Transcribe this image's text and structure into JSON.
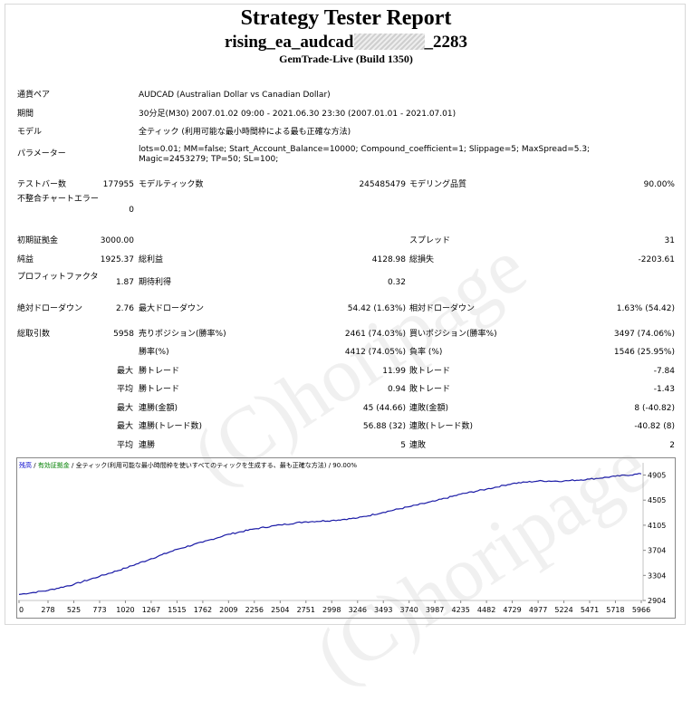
{
  "header": {
    "title": "Strategy Tester Report",
    "ea_prefix": "rising_ea_audcad",
    "ea_suffix": "_2283",
    "server": "GemTrade-Live (Build 1350)"
  },
  "info": {
    "currency_pair_label": "通貨ペア",
    "currency_pair": "AUDCAD (Australian Dollar vs Canadian Dollar)",
    "period_label": "期間",
    "period": "30分足(M30) 2007.01.02 09:00 - 2021.06.30 23:30 (2007.01.01 - 2021.07.01)",
    "model_label": "モデル",
    "model": "全ティック (利用可能な最小時間枠による最も正確な方法)",
    "params_label": "パラメーター",
    "params": "lots=0.01; MM=false; Start_Account_Balance=10000; Compound_coefficient=1; Slippage=5; MaxSpread=5.3; Magic=2453279; TP=50; SL=100;"
  },
  "stats": {
    "bars_label": "テストバー数",
    "bars": "177955",
    "ticks_label": "モデルティック数",
    "ticks": "245485479",
    "quality_label": "モデリング品質",
    "quality": "90.00%",
    "mismatch_label": "不整合チャートエラー",
    "mismatch": "0",
    "deposit_label": "初期証拠金",
    "deposit": "3000.00",
    "spread_label": "スプレッド",
    "spread": "31",
    "net_label": "純益",
    "net": "1925.37",
    "gross_profit_label": "総利益",
    "gross_profit": "4128.98",
    "gross_loss_label": "総損失",
    "gross_loss": "-2203.61",
    "pf_label": "プロフィットファクタ",
    "pf": "1.87",
    "expected_label": "期待利得",
    "expected": "0.32",
    "abs_dd_label": "絶対ドローダウン",
    "abs_dd": "2.76",
    "max_dd_label": "最大ドローダウン",
    "max_dd": "54.42 (1.63%)",
    "rel_dd_label": "相対ドローダウン",
    "rel_dd": "1.63% (54.42)",
    "total_trades_label": "総取引数",
    "total_trades": "5958",
    "short_label": "売りポジション(勝率%)",
    "short": "2461 (74.03%)",
    "long_label": "買いポジション(勝率%)",
    "long": "3497 (74.06%)",
    "win_rate_label": "勝率(%)",
    "win_rate": "4412 (74.05%)",
    "loss_rate_label": "負率 (%)",
    "loss_rate": "1546 (25.95%)",
    "largest_label": "最大",
    "largest_win_label": "勝トレード",
    "largest_win": "11.99",
    "largest_loss_label": "敗トレード",
    "largest_loss": "-7.84",
    "average_label": "平均",
    "avg_win_label": "勝トレード",
    "avg_win": "0.94",
    "avg_loss_label": "敗トレード",
    "avg_loss": "-1.43",
    "max1_label": "最大",
    "cons_wins_amt_label": "連勝(金額)",
    "cons_wins_amt": "45 (44.66)",
    "cons_losses_amt_label": "連敗(金額)",
    "cons_losses_amt": "8 (-40.82)",
    "max2_label": "最大",
    "cons_profit_label": "連勝(トレード数)",
    "cons_profit": "56.88 (32)",
    "cons_loss_label": "連敗(トレード数)",
    "cons_loss": "-40.82 (8)",
    "avg2_label": "平均",
    "avg_cons_wins_label": "連勝",
    "avg_cons_wins": "5",
    "avg_cons_losses_label": "連敗",
    "avg_cons_losses": "2"
  },
  "chart_header": {
    "balance": "残高",
    "sep1": " / ",
    "equity": "有効証拠金",
    "sep2": " / ",
    "desc": "全ティック(利用可能な最小時間枠を使いすべてのティックを生成する、最も正確な方法) / 90.00%"
  },
  "watermark": "(C)horipage",
  "colors": {
    "line": "#1a1aa6",
    "balance_label": "#0000cc",
    "equity_label": "#008000"
  },
  "chart_data": {
    "type": "line",
    "x": [
      0,
      278,
      525,
      773,
      1020,
      1267,
      1515,
      1762,
      2009,
      2256,
      2504,
      2751,
      2998,
      3246,
      3493,
      3740,
      3987,
      4235,
      4482,
      4729,
      4977,
      5224,
      5471,
      5718,
      5966
    ],
    "x_ticks": [
      "0",
      "278",
      "525",
      "773",
      "1020",
      "1267",
      "1515",
      "1762",
      "2009",
      "2256",
      "2504",
      "2751",
      "2998",
      "3246",
      "3493",
      "3740",
      "3987",
      "4235",
      "4482",
      "4729",
      "4977",
      "5224",
      "5471",
      "5718",
      "5966"
    ],
    "y_ticks": [
      "2904",
      "3304",
      "3704",
      "4105",
      "4505",
      "4905"
    ],
    "ylim": [
      2904,
      4985
    ],
    "series": [
      {
        "values": [
          3000,
          3065,
          3160,
          3290,
          3420,
          3570,
          3720,
          3835,
          3960,
          4045,
          4110,
          4160,
          4180,
          4220,
          4310,
          4400,
          4490,
          4600,
          4680,
          4770,
          4810,
          4810,
          4840,
          4885,
          4925
        ]
      }
    ]
  }
}
